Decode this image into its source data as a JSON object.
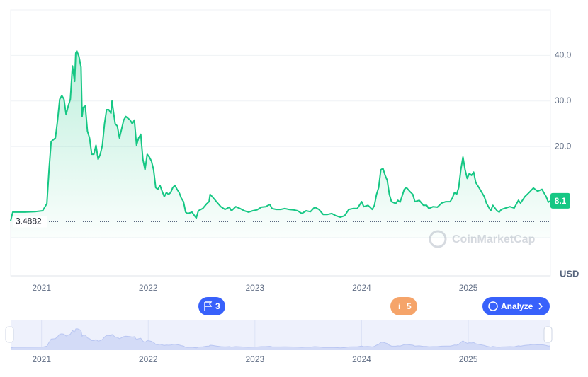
{
  "chart_data": {
    "type": "line",
    "area": true,
    "color": "#16c784",
    "x": [
      2020.71,
      2020.73,
      2020.84,
      2020.94,
      2021.01,
      2021.05,
      2021.07,
      2021.09,
      2021.13,
      2021.15,
      2021.17,
      2021.19,
      2021.21,
      2021.23,
      2021.25,
      2021.27,
      2021.29,
      2021.31,
      2021.32,
      2021.33,
      2021.35,
      2021.37,
      2021.38,
      2021.39,
      2021.41,
      2021.43,
      2021.45,
      2021.47,
      2021.49,
      2021.51,
      2021.53,
      2021.55,
      2021.57,
      2021.59,
      2021.61,
      2021.63,
      2021.65,
      2021.66,
      2021.68,
      2021.69,
      2021.71,
      2021.73,
      2021.75,
      2021.77,
      2021.79,
      2021.83,
      2021.85,
      2021.87,
      2021.89,
      2021.91,
      2021.93,
      2021.95,
      2021.97,
      2021.99,
      2022.01,
      2022.03,
      2022.05,
      2022.07,
      2022.09,
      2022.11,
      2022.13,
      2022.15,
      2022.17,
      2022.19,
      2022.21,
      2022.23,
      2022.25,
      2022.27,
      2022.29,
      2022.31,
      2022.33,
      2022.35,
      2022.37,
      2022.41,
      2022.45,
      2022.47,
      2022.51,
      2022.55,
      2022.57,
      2022.58,
      2022.6,
      2022.64,
      2022.68,
      2022.72,
      2022.76,
      2022.78,
      2022.82,
      2022.86,
      2022.9,
      2022.94,
      2022.98,
      2023.02,
      2023.06,
      2023.1,
      2023.14,
      2023.16,
      2023.2,
      2023.24,
      2023.28,
      2023.32,
      2023.36,
      2023.4,
      2023.44,
      2023.48,
      2023.52,
      2023.56,
      2023.6,
      2023.64,
      2023.68,
      2023.72,
      2023.76,
      2023.8,
      2023.84,
      2023.88,
      2023.92,
      2023.96,
      2024.0,
      2024.02,
      2024.06,
      2024.1,
      2024.12,
      2024.14,
      2024.16,
      2024.18,
      2024.2,
      2024.22,
      2024.24,
      2024.26,
      2024.28,
      2024.32,
      2024.34,
      2024.36,
      2024.4,
      2024.42,
      2024.45,
      2024.48,
      2024.5,
      2024.54,
      2024.58,
      2024.61,
      2024.63,
      2024.67,
      2024.71,
      2024.75,
      2024.79,
      2024.83,
      2024.85,
      2024.87,
      2024.89,
      2024.91,
      2024.93,
      2024.95,
      2024.97,
      2024.99,
      2025.01,
      2025.03,
      2025.05,
      2025.07,
      2025.11,
      2025.15,
      2025.17,
      2025.21,
      2025.23,
      2025.27,
      2025.29,
      2025.31,
      2025.35,
      2025.39,
      2025.43,
      2025.47,
      2025.49,
      2025.53,
      2025.57,
      2025.61,
      2025.65,
      2025.69,
      2025.73,
      2025.75,
      2025.77
    ],
    "values": [
      3.7,
      5.6,
      5.6,
      5.7,
      5.9,
      7.5,
      14.9,
      21.1,
      21.9,
      25.8,
      30.4,
      31.2,
      30.4,
      27.0,
      28.9,
      30.4,
      37.7,
      34.3,
      40.5,
      41.0,
      39.8,
      37.4,
      26.6,
      28.6,
      28.9,
      23.4,
      21.9,
      18.3,
      18.3,
      20.3,
      17.2,
      18.3,
      20.3,
      25.0,
      28.1,
      28.1,
      27.3,
      30.0,
      26.6,
      25.0,
      24.5,
      21.9,
      23.8,
      25.8,
      26.6,
      25.8,
      25.0,
      25.8,
      20.3,
      21.9,
      22.7,
      17.2,
      14.9,
      18.3,
      17.7,
      16.8,
      14.9,
      11.0,
      10.6,
      11.5,
      10.2,
      9.0,
      9.9,
      9.5,
      9.9,
      11.0,
      11.5,
      10.6,
      9.9,
      8.7,
      7.9,
      5.6,
      5.3,
      5.6,
      4.3,
      5.9,
      6.4,
      7.5,
      7.9,
      9.5,
      9.0,
      7.9,
      6.8,
      6.2,
      6.7,
      5.9,
      6.8,
      6.4,
      5.9,
      5.6,
      5.9,
      6.1,
      6.7,
      6.8,
      7.3,
      6.4,
      6.2,
      6.2,
      6.4,
      6.2,
      6.1,
      5.9,
      5.3,
      5.9,
      5.7,
      6.7,
      6.2,
      5.1,
      5.1,
      5.3,
      4.8,
      4.5,
      4.8,
      6.2,
      6.4,
      6.4,
      7.9,
      6.8,
      7.1,
      6.2,
      7.1,
      9.5,
      11.0,
      14.9,
      15.2,
      13.7,
      12.6,
      9.5,
      7.9,
      7.5,
      8.2,
      7.8,
      10.6,
      11.0,
      10.2,
      9.5,
      7.9,
      8.2,
      7.1,
      7.1,
      6.4,
      6.8,
      6.7,
      7.6,
      7.9,
      7.9,
      8.7,
      9.9,
      9.5,
      11.0,
      14.9,
      17.7,
      14.9,
      13.0,
      14.1,
      13.7,
      14.4,
      12.1,
      10.6,
      9.0,
      7.6,
      5.9,
      7.1,
      5.9,
      5.6,
      6.2,
      6.5,
      6.8,
      6.5,
      8.2,
      7.6,
      9.0,
      9.9,
      10.9,
      10.2,
      10.6,
      9.0,
      7.8,
      8.1
    ],
    "xlim": [
      2020.71,
      2025.77
    ],
    "xticks": [
      2021,
      2022,
      2023,
      2024,
      2025
    ],
    "ylim": [
      0,
      50
    ],
    "yticks": [
      {
        "value": 20,
        "label": "20.0"
      },
      {
        "value": 30,
        "label": "30.0"
      },
      {
        "value": 40,
        "label": "40.0"
      }
    ],
    "grid": true,
    "current_price": 8.1,
    "low_line": 3.4882,
    "currency": "USD"
  },
  "ui": {
    "events": [
      "3",
      "5"
    ],
    "analyze_button": "Analyze",
    "watermark": "CoinMarketCap"
  }
}
